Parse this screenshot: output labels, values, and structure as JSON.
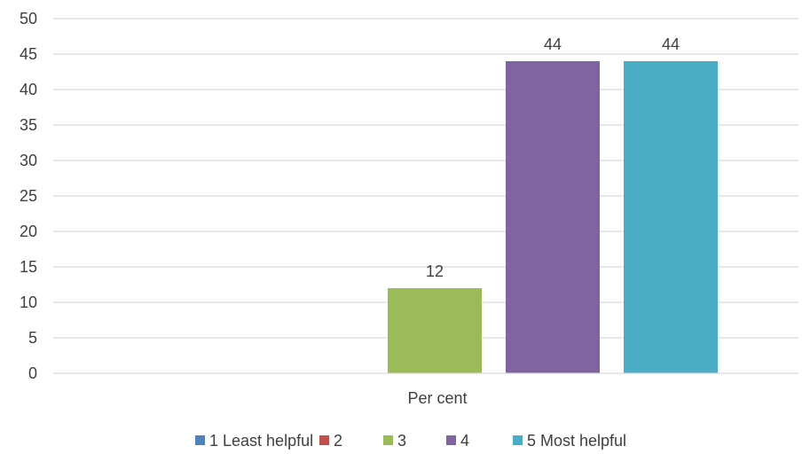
{
  "chart_data": {
    "type": "bar",
    "categories": [
      "Per cent"
    ],
    "series": [
      {
        "name": "1 Least helpful",
        "values": [
          0
        ],
        "color": "#4F81BD"
      },
      {
        "name": "2",
        "values": [
          0
        ],
        "color": "#C0504D"
      },
      {
        "name": "3",
        "values": [
          12
        ],
        "color": "#9BBB59"
      },
      {
        "name": "4",
        "values": [
          44
        ],
        "color": "#8064A2"
      },
      {
        "name": "5 Most helpful",
        "values": [
          44
        ],
        "color": "#4BACC6"
      }
    ],
    "data_labels": [
      "",
      "",
      "12",
      "44",
      "44"
    ],
    "title": "",
    "xlabel": "",
    "ylabel": "",
    "ylim": [
      0,
      50
    ],
    "yticks": [
      0,
      5,
      10,
      15,
      20,
      25,
      30,
      35,
      40,
      45,
      50
    ],
    "grid": true,
    "legend_position": "bottom"
  }
}
